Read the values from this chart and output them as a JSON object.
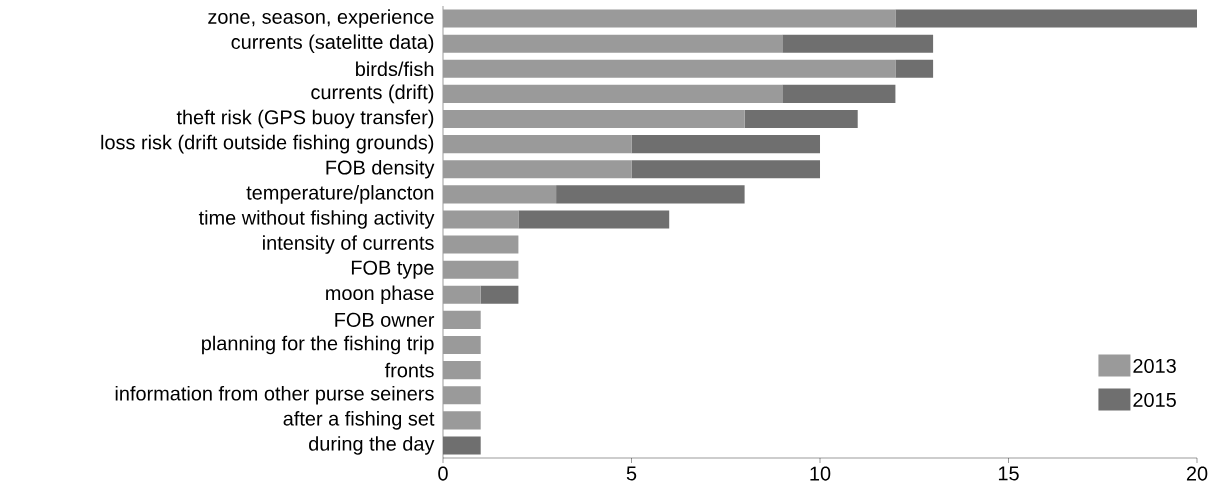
{
  "chart_data": {
    "type": "bar",
    "orientation": "horizontal",
    "stacked": true,
    "categories": [
      "zone, season, experience",
      "currents (satelitte data)",
      "birds/fish",
      "currents (drift)",
      "theft risk (GPS buoy transfer)",
      "loss risk (drift outside fishing grounds)",
      "FOB density",
      "temperature/plancton",
      "time without fishing activity",
      "intensity of currents",
      "FOB type",
      "moon phase",
      "FOB owner",
      "planning for the fishing trip",
      "fronts",
      "information from other purse seiners",
      "after a fishing set",
      "during the day"
    ],
    "series": [
      {
        "name": "2013",
        "color": "#9a9a9a",
        "values": [
          12,
          9,
          12,
          9,
          8,
          5,
          5,
          3,
          2,
          2,
          2,
          1,
          1,
          1,
          1,
          1,
          1,
          0
        ]
      },
      {
        "name": "2015",
        "color": "#6f6f6f",
        "values": [
          8,
          4,
          1,
          3,
          3,
          5,
          5,
          5,
          4,
          0,
          0,
          1,
          0,
          0,
          0,
          0,
          0,
          1
        ]
      }
    ],
    "xlim": [
      0,
      20
    ],
    "xticks": [
      0,
      5,
      10,
      15,
      20
    ],
    "legend": "bottom right",
    "grid": false
  }
}
